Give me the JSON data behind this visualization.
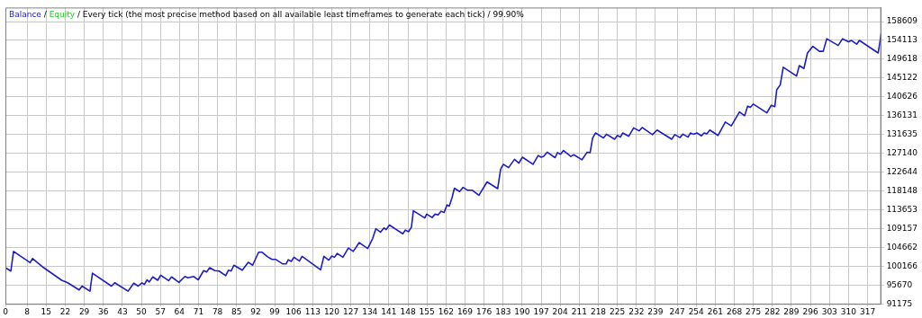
{
  "chart_data": {
    "type": "line",
    "annotations": [
      "/"
    ],
    "title": "/ Every tick (the most precise method based on all available least timeframes to generate each tick) / 99.90%",
    "xlim": [
      0,
      322
    ],
    "xticks": [
      0,
      8,
      15,
      22,
      29,
      36,
      43,
      50,
      57,
      64,
      71,
      78,
      85,
      92,
      99,
      106,
      113,
      120,
      127,
      134,
      141,
      148,
      155,
      162,
      169,
      176,
      183,
      190,
      197,
      204,
      211,
      218,
      225,
      232,
      239,
      247,
      254,
      261,
      268,
      275,
      282,
      289,
      296,
      303,
      310,
      317
    ],
    "ylim": [
      91175,
      161960
    ],
    "yticks": [
      91175,
      95670,
      100166,
      104662,
      109157,
      113653,
      118148,
      122644,
      127140,
      131635,
      136131,
      140626,
      145122,
      149618,
      154113,
      158609
    ],
    "grid": true,
    "legend": "top left",
    "marker": "none",
    "line_style": "solid",
    "series": [
      {
        "name": "Balance",
        "color": "#1d1dc8",
        "x": [
          0,
          2.0,
          3.0,
          9.1,
          10.0,
          14.1,
          20.7,
          22.9,
          27.1,
          28.2,
          31.1,
          32.0,
          39.0,
          40.2,
          45.1,
          47.2,
          48.8,
          50.2,
          51.1,
          52.1,
          52.9,
          54.2,
          56.0,
          57.1,
          60.0,
          61.1,
          63.8,
          66.0,
          67.1,
          69.3,
          70.9,
          72.9,
          74.0,
          75.1,
          77.0,
          78.6,
          81.0,
          82.0,
          83.0,
          84.0,
          87.1,
          89.3,
          90.9,
          93.1,
          94.4,
          96.4,
          98.0,
          99.3,
          102.0,
          103.2,
          104.0,
          105.1,
          106.1,
          108.1,
          109.1,
          115.9,
          117.1,
          118.9,
          120.0,
          121.0,
          122.0,
          124.1,
          126.1,
          127.9,
          130.1,
          133.2,
          135.0,
          136.2,
          137.9,
          139.2,
          140.0,
          141.2,
          146.1,
          147.1,
          148.2,
          149.3,
          150.0,
          154.2,
          154.9,
          156.9,
          158.0,
          159.1,
          160.2,
          161.3,
          162.4,
          163.2,
          164.2,
          165.1,
          167.0,
          168.3,
          170.0,
          171.7,
          174.1,
          177.1,
          181.0,
          182.1,
          183.1,
          185.0,
          187.2,
          188.8,
          190.1,
          194.0,
          195.9,
          197.0,
          197.9,
          199.2,
          202.1,
          203.0,
          204.1,
          205.2,
          207.9,
          209.0,
          212.0,
          213.9,
          215.0,
          215.9,
          217.0,
          219.9,
          221.0,
          224.0,
          225.0,
          226.1,
          227.0,
          229.2,
          231.0,
          233.0,
          234.1,
          237.9,
          239.6,
          245.0,
          246.1,
          248.0,
          249.1,
          251.0,
          251.9,
          253.0,
          254.3,
          255.9,
          256.9,
          257.9,
          259.0,
          262.0,
          264.7,
          266.9,
          269.9,
          271.8,
          272.9,
          273.9,
          275.0,
          280.0,
          281.6,
          282.9,
          283.6,
          284.9,
          286.0,
          290.9,
          291.9,
          293.6,
          294.9,
          296.9,
          299.3,
          300.7,
          302.0,
          306.2,
          307.8,
          310.0,
          311.1,
          313.0,
          314.0,
          320.9,
          322.0
        ],
        "values": [
          99800,
          99000,
          103700,
          101000,
          102000,
          99800,
          96800,
          96200,
          94500,
          95400,
          94200,
          98500,
          95400,
          96200,
          94200,
          96100,
          95400,
          96200,
          95800,
          96900,
          96400,
          97600,
          96800,
          98000,
          96700,
          97600,
          96300,
          97700,
          97400,
          97700,
          96900,
          99100,
          98800,
          99800,
          99100,
          99000,
          97900,
          99200,
          99000,
          100400,
          99200,
          101100,
          100400,
          103500,
          103500,
          102400,
          101800,
          101800,
          100700,
          100700,
          101700,
          101300,
          102300,
          101400,
          102500,
          99300,
          102500,
          101600,
          102600,
          102300,
          103200,
          102300,
          104500,
          103700,
          105800,
          104400,
          106700,
          109100,
          108300,
          109300,
          108900,
          110000,
          107900,
          108800,
          108400,
          109500,
          113400,
          111700,
          112600,
          111800,
          112600,
          112400,
          113300,
          113000,
          114800,
          114500,
          116500,
          118800,
          118000,
          119000,
          118300,
          118300,
          117100,
          120300,
          118700,
          123400,
          124500,
          123700,
          125700,
          124800,
          126200,
          124500,
          126600,
          126200,
          126400,
          127400,
          126100,
          127300,
          126900,
          127800,
          126400,
          126800,
          125600,
          127400,
          127300,
          130800,
          132000,
          130800,
          131700,
          130500,
          131400,
          131000,
          132000,
          131200,
          133200,
          132500,
          133300,
          131600,
          132700,
          130500,
          131600,
          130900,
          131700,
          131000,
          132000,
          131700,
          132000,
          131300,
          132000,
          131800,
          132700,
          131400,
          134600,
          133700,
          137000,
          136100,
          138400,
          138100,
          138900,
          136800,
          138600,
          138300,
          142300,
          143500,
          147700,
          145600,
          148100,
          147400,
          151100,
          152700,
          151500,
          151500,
          154500,
          152900,
          154500,
          153800,
          154100,
          153200,
          154100,
          151100,
          155700
        ]
      },
      {
        "name": "Equity",
        "color": "#22cc22"
      }
    ]
  }
}
